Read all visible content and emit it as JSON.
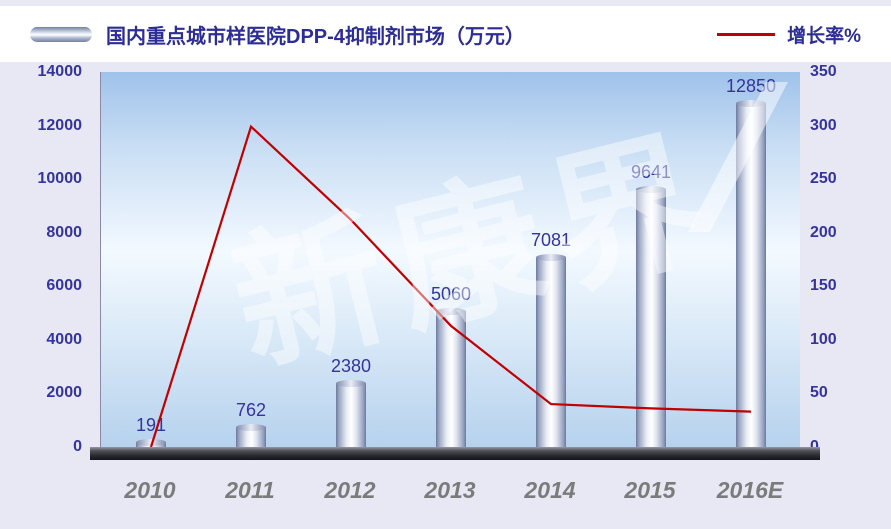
{
  "header": {
    "title": "国内重点城市样医院DPP-4抑制剂市场（万元）",
    "line_legend": "增长率%"
  },
  "watermark": {
    "text": "新康界"
  },
  "chart_data": {
    "type": "bar",
    "combo": "bar+line",
    "title": "国内重点城市样医院DPP-4抑制剂市场（万元）",
    "categories": [
      "2010",
      "2011",
      "2012",
      "2013",
      "2014",
      "2015",
      "2016E"
    ],
    "series": [
      {
        "name": "国内重点城市样医院DPP-4抑制剂市场（万元）",
        "type": "bar",
        "axis": "left",
        "values": [
          191,
          762,
          2380,
          5060,
          7081,
          9641,
          12850
        ]
      },
      {
        "name": "增长率%",
        "type": "line",
        "axis": "right",
        "values": [
          0,
          299,
          212,
          113,
          40,
          36,
          33
        ]
      }
    ],
    "bar_labels": [
      "191",
      "762",
      "2380",
      "5060",
      "7081",
      "9641",
      "12850"
    ],
    "left_axis": {
      "min": 0,
      "max": 14000,
      "step": 2000,
      "ticks": [
        "0",
        "2000",
        "4000",
        "6000",
        "8000",
        "10000",
        "12000",
        "14000"
      ]
    },
    "right_axis": {
      "min": 0,
      "max": 350,
      "step": 50,
      "ticks": [
        "0",
        "50",
        "100",
        "150",
        "200",
        "250",
        "300",
        "350"
      ]
    },
    "legend_position": "top",
    "grid": false,
    "colors": {
      "line": "#c00000",
      "axis_text": "#34349c",
      "category_text": "#7b7b7b",
      "bar_edge": "#6e7a9c"
    }
  }
}
